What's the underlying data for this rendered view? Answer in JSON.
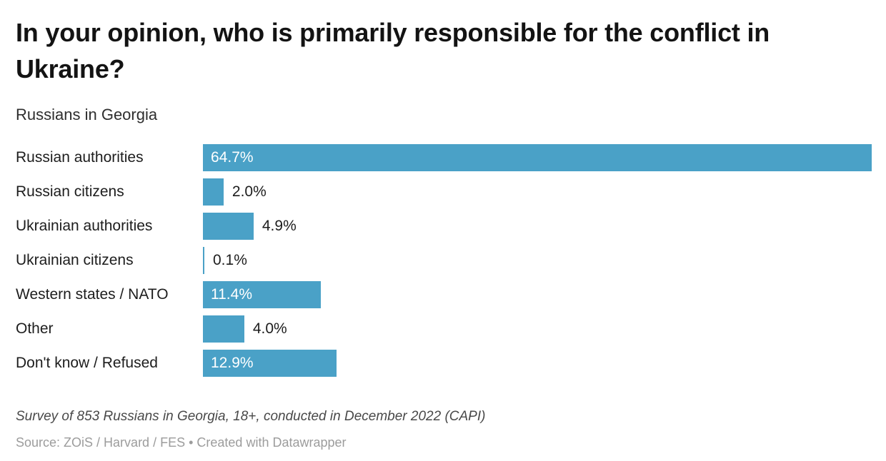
{
  "chart_data": {
    "type": "bar",
    "orientation": "horizontal",
    "title": "In your opinion, who is primarily responsible for the conflict in Ukraine?",
    "subtitle": "Russians in Georgia",
    "categories": [
      "Russian authorities",
      "Russian citizens",
      "Ukrainian authorities",
      "Ukrainian citizens",
      "Western states / NATO",
      "Other",
      "Don't know / Refused"
    ],
    "values": [
      64.7,
      2.0,
      4.9,
      0.1,
      11.4,
      4.0,
      12.9
    ],
    "value_labels": [
      "64.7%",
      "2.0%",
      "4.9%",
      "0.1%",
      "11.4%",
      "4.0%",
      "12.9%"
    ],
    "label_inside": [
      true,
      false,
      false,
      false,
      true,
      false,
      true
    ],
    "xlim": [
      0,
      64.7
    ],
    "bar_color": "#4aa1c7",
    "grid": false,
    "legend": "none",
    "notes": "Survey of 853 Russians in Georgia, 18+, conducted in December 2022 (CAPI)",
    "source_prefix": "Source: ",
    "source": "ZOiS / Harvard / FES",
    "separator": " • ",
    "credit": "Created with Datawrapper"
  }
}
